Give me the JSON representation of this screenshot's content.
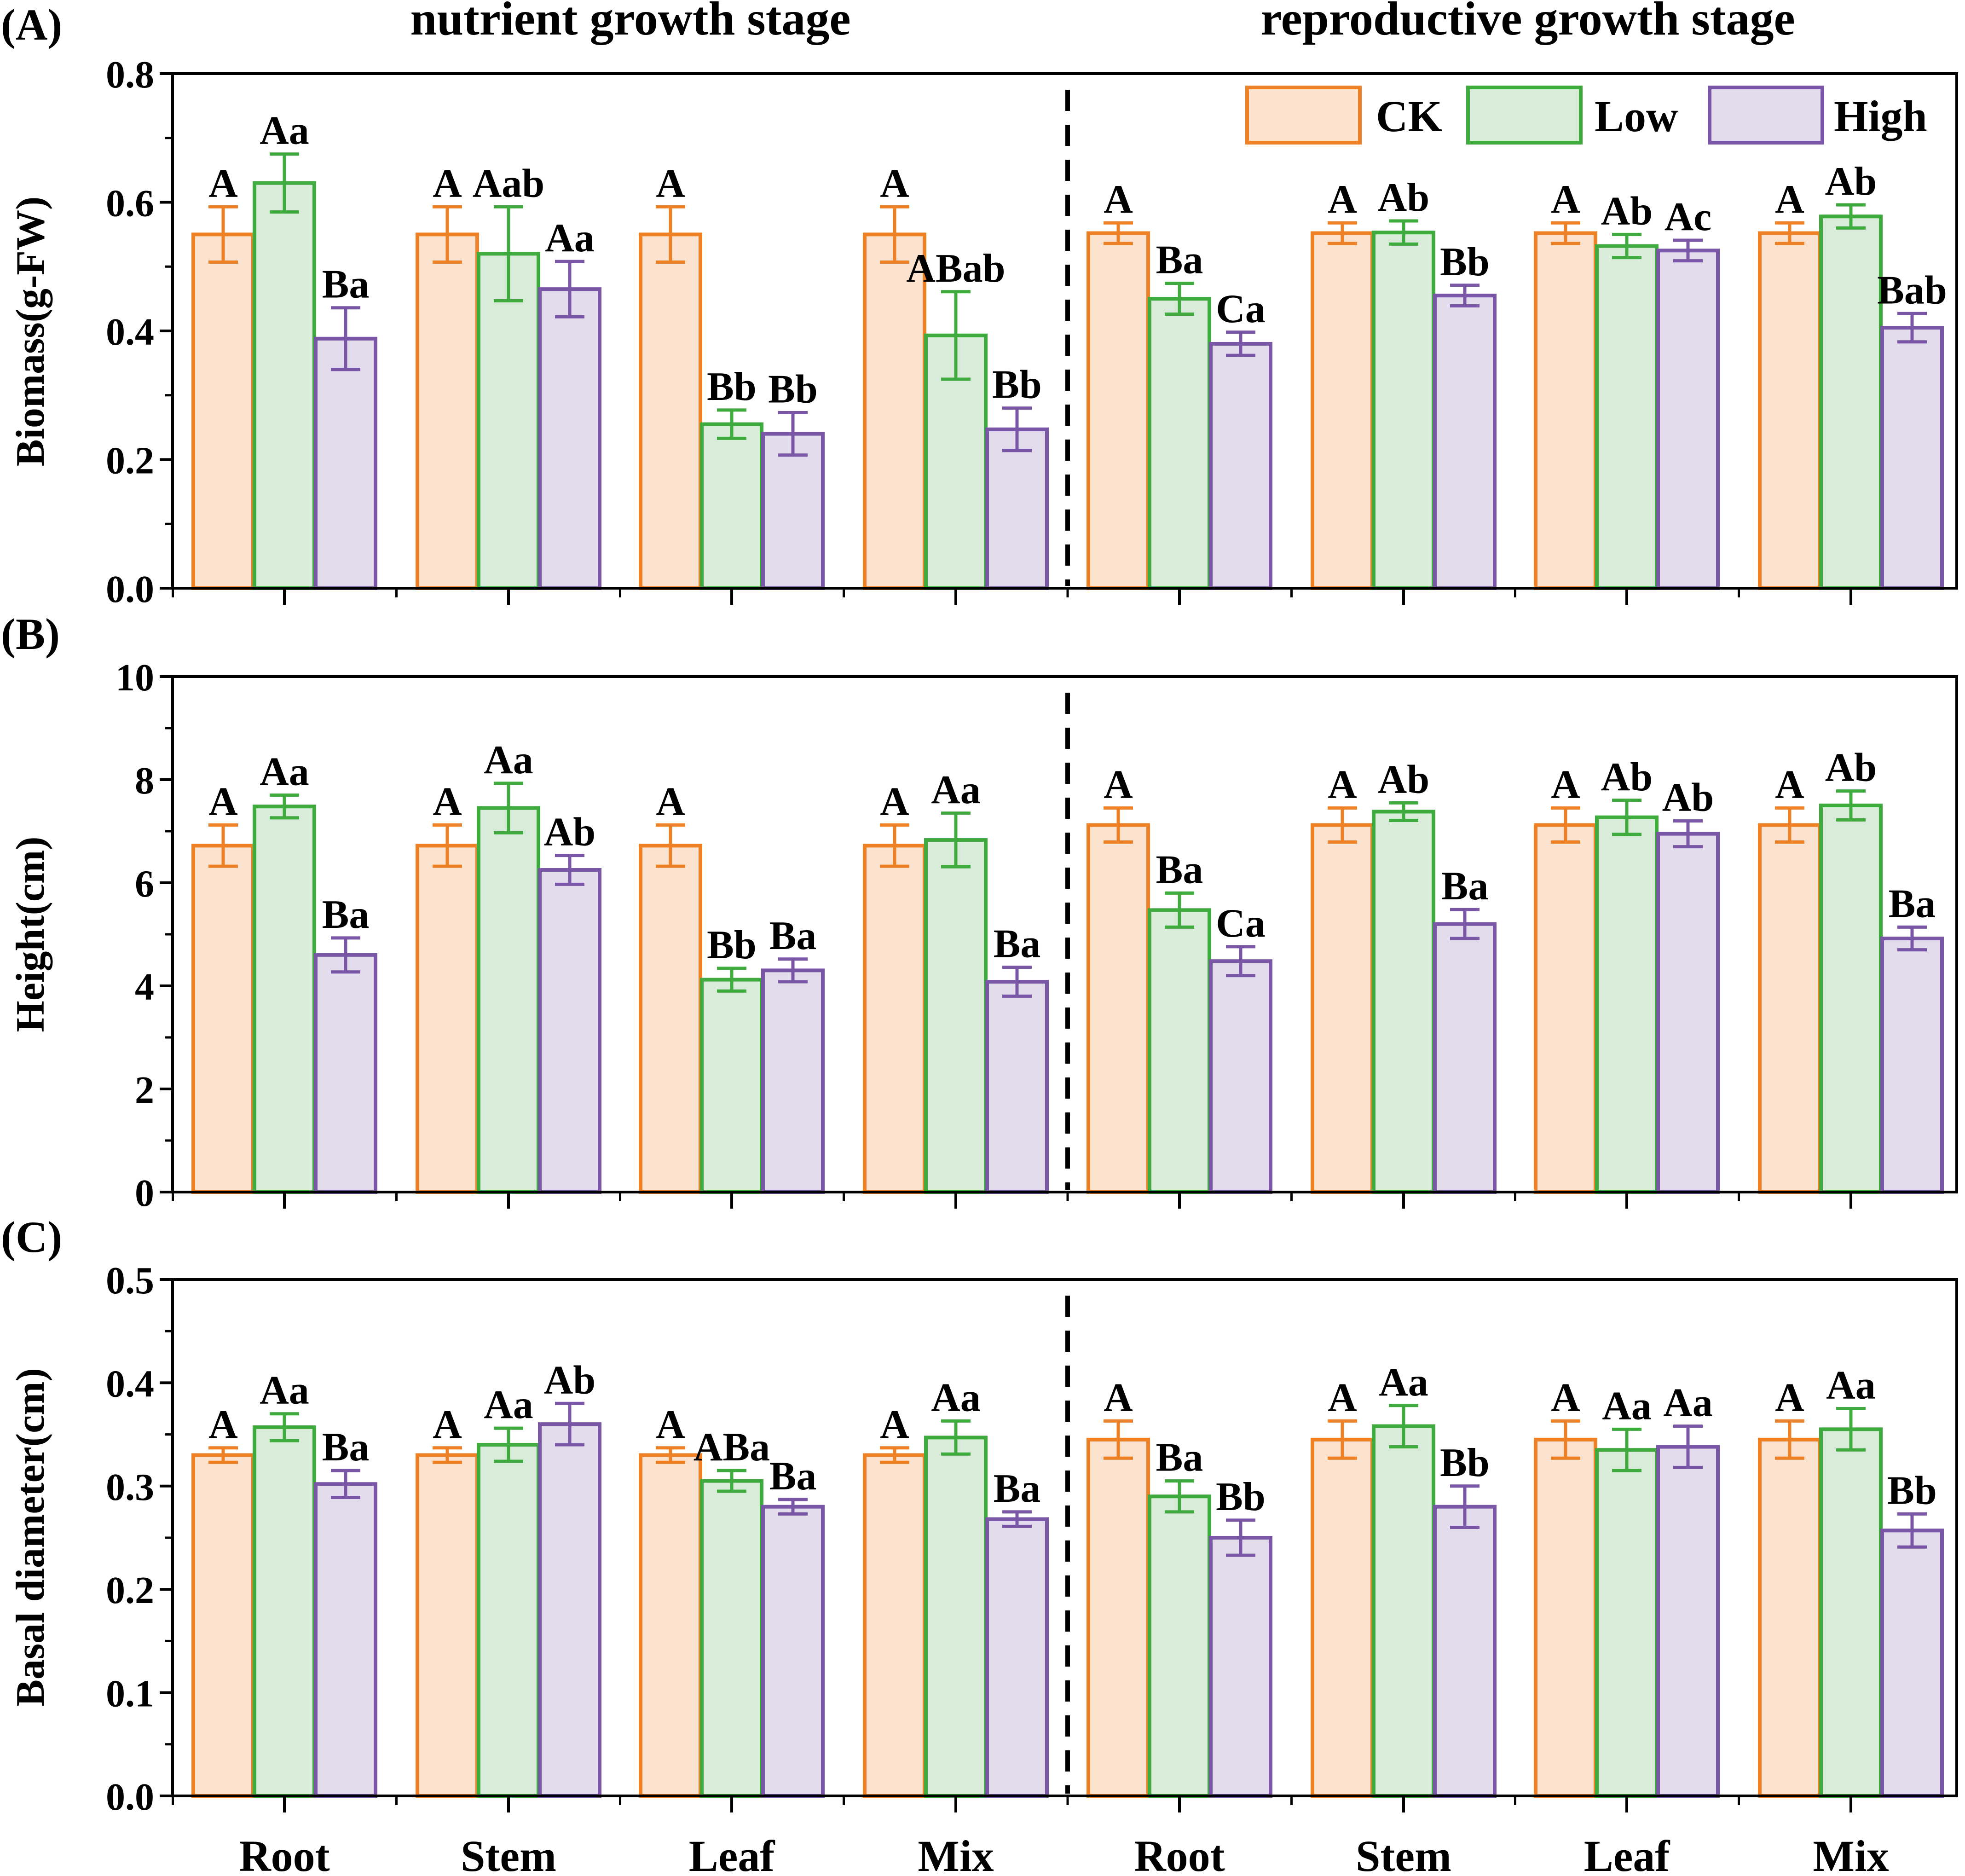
{
  "colors": {
    "CK": {
      "fill": "#fce3d0",
      "stroke": "#ee8125"
    },
    "Low": {
      "fill": "#d9ecda",
      "stroke": "#3fab3f"
    },
    "High": {
      "fill": "#e2dcec",
      "stroke": "#7a56a6"
    },
    "axis": "#000000"
  },
  "header": {
    "left_stage": "nutrient growth stage",
    "right_stage": "reproductive growth stage"
  },
  "legend": [
    "CK",
    "Low",
    "High"
  ],
  "x_labels": [
    "Root",
    "Stem",
    "Leaf",
    "Mix",
    "Root",
    "Stem",
    "Leaf",
    "Mix"
  ],
  "chart_data": [
    {
      "type": "bar",
      "panel_label": "(A)",
      "ylabel": "Biomass(g-FW)",
      "ylim": [
        0,
        0.8
      ],
      "yticks": [
        "0.0",
        "0.2",
        "0.4",
        "0.6",
        "0.8"
      ],
      "categories": [
        "Root",
        "Stem",
        "Leaf",
        "Mix",
        "Root",
        "Stem",
        "Leaf",
        "Mix"
      ],
      "stages": [
        "nutrient growth stage",
        "reproductive growth stage"
      ],
      "series": [
        {
          "name": "CK",
          "values": [
            0.55,
            0.55,
            0.55,
            0.55,
            0.552,
            0.552,
            0.552,
            0.552
          ],
          "errors": [
            0.043,
            0.043,
            0.043,
            0.043,
            0.016,
            0.016,
            0.016,
            0.016
          ],
          "labels": [
            "A",
            "A",
            "A",
            "A",
            "A",
            "A",
            "A",
            "A"
          ]
        },
        {
          "name": "Low",
          "values": [
            0.63,
            0.52,
            0.255,
            0.393,
            0.45,
            0.553,
            0.532,
            0.578
          ],
          "errors": [
            0.045,
            0.073,
            0.022,
            0.068,
            0.024,
            0.018,
            0.018,
            0.018
          ],
          "labels": [
            "Aa",
            "Aab",
            "Bb",
            "ABab",
            "Ba",
            "Ab",
            "Ab",
            "Ab"
          ]
        },
        {
          "name": "High",
          "values": [
            0.388,
            0.465,
            0.24,
            0.247,
            0.38,
            0.455,
            0.525,
            0.405
          ],
          "errors": [
            0.048,
            0.043,
            0.033,
            0.033,
            0.018,
            0.016,
            0.016,
            0.022
          ],
          "labels": [
            "Ba",
            "Aa",
            "Bb",
            "Bb",
            "Ca",
            "Bb",
            "Ac",
            "Bab"
          ]
        }
      ]
    },
    {
      "type": "bar",
      "panel_label": "(B)",
      "ylabel": "Height(cm)",
      "ylim": [
        0,
        10
      ],
      "yticks": [
        "0",
        "2",
        "4",
        "6",
        "8",
        "10"
      ],
      "categories": [
        "Root",
        "Stem",
        "Leaf",
        "Mix",
        "Root",
        "Stem",
        "Leaf",
        "Mix"
      ],
      "series": [
        {
          "name": "CK",
          "values": [
            6.72,
            6.72,
            6.72,
            6.72,
            7.12,
            7.12,
            7.12,
            7.12
          ],
          "errors": [
            0.4,
            0.4,
            0.4,
            0.4,
            0.33,
            0.33,
            0.33,
            0.33
          ],
          "labels": [
            "A",
            "A",
            "A",
            "A",
            "A",
            "A",
            "A",
            "A"
          ]
        },
        {
          "name": "Low",
          "values": [
            7.48,
            7.45,
            4.12,
            6.83,
            5.47,
            7.38,
            7.27,
            7.5
          ],
          "errors": [
            0.22,
            0.48,
            0.22,
            0.52,
            0.33,
            0.17,
            0.33,
            0.28
          ],
          "labels": [
            "Aa",
            "Aa",
            "Bb",
            "Aa",
            "Ba",
            "Ab",
            "Ab",
            "Ab"
          ]
        },
        {
          "name": "High",
          "values": [
            4.6,
            6.25,
            4.3,
            4.08,
            4.48,
            5.2,
            6.95,
            4.92
          ],
          "errors": [
            0.33,
            0.28,
            0.22,
            0.28,
            0.28,
            0.28,
            0.25,
            0.22
          ],
          "labels": [
            "Ba",
            "Ab",
            "Ba",
            "Ba",
            "Ca",
            "Ba",
            "Ab",
            "Ba"
          ]
        }
      ]
    },
    {
      "type": "bar",
      "panel_label": "(C)",
      "ylabel": "Basal diameter(cm)",
      "ylim": [
        0,
        0.5
      ],
      "yticks": [
        "0.0",
        "0.1",
        "0.2",
        "0.3",
        "0.4",
        "0.5"
      ],
      "categories": [
        "Root",
        "Stem",
        "Leaf",
        "Mix",
        "Root",
        "Stem",
        "Leaf",
        "Mix"
      ],
      "series": [
        {
          "name": "CK",
          "values": [
            0.33,
            0.33,
            0.33,
            0.33,
            0.345,
            0.345,
            0.345,
            0.345
          ],
          "errors": [
            0.007,
            0.007,
            0.007,
            0.007,
            0.018,
            0.018,
            0.018,
            0.018
          ],
          "labels": [
            "A",
            "A",
            "A",
            "A",
            "A",
            "A",
            "A",
            "A"
          ]
        },
        {
          "name": "Low",
          "values": [
            0.357,
            0.34,
            0.305,
            0.347,
            0.29,
            0.358,
            0.335,
            0.355
          ],
          "errors": [
            0.013,
            0.016,
            0.01,
            0.016,
            0.015,
            0.02,
            0.02,
            0.02
          ],
          "labels": [
            "Aa",
            "Aa",
            "ABa",
            "Aa",
            "Ba",
            "Aa",
            "Aa",
            "Aa"
          ]
        },
        {
          "name": "High",
          "values": [
            0.302,
            0.36,
            0.28,
            0.268,
            0.25,
            0.28,
            0.338,
            0.257
          ],
          "errors": [
            0.013,
            0.02,
            0.007,
            0.007,
            0.017,
            0.02,
            0.02,
            0.016
          ],
          "labels": [
            "Ba",
            "Ab",
            "Ba",
            "Ba",
            "Bb",
            "Bb",
            "Aa",
            "Bb"
          ]
        }
      ]
    }
  ]
}
